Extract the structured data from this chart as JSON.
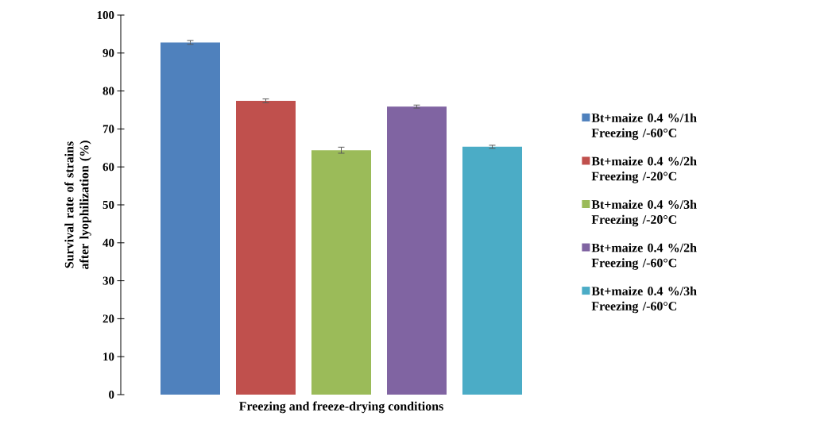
{
  "chart_data": {
    "type": "bar",
    "xlabel": "Freezing and freeze-drying conditions",
    "ylabel": "Survival rate of strains after lyophilization (%)",
    "categories": [
      null
    ],
    "series": [
      {
        "name": "Bt+maize 0.4 %/1h Freezing /-60°C",
        "color": "#4f81bd",
        "values": [
          92.8
        ],
        "errors": [
          0.5
        ]
      },
      {
        "name": "Bt+maize 0.4 %/2h Freezing /-20°C",
        "color": "#c0504d",
        "values": [
          77.4
        ],
        "errors": [
          0.5
        ]
      },
      {
        "name": "Bt+maize 0.4 %/3h Freezing /-20°C",
        "color": "#9bbb59",
        "values": [
          64.4
        ],
        "errors": [
          0.8
        ]
      },
      {
        "name": "Bt+maize 0.4 %/2h Freezing /-60°C",
        "color": "#8064a2",
        "values": [
          75.9
        ],
        "errors": [
          0.4
        ]
      },
      {
        "name": "Bt+maize 0.4 %/3h Freezing /-60°C",
        "color": "#4bacc6",
        "values": [
          65.3
        ],
        "errors": [
          0.4
        ]
      }
    ],
    "ylim": [
      0,
      100
    ],
    "yticks": [
      0,
      10,
      20,
      30,
      40,
      50,
      60,
      70,
      80,
      90,
      100
    ],
    "legend": "right",
    "grid": false
  }
}
